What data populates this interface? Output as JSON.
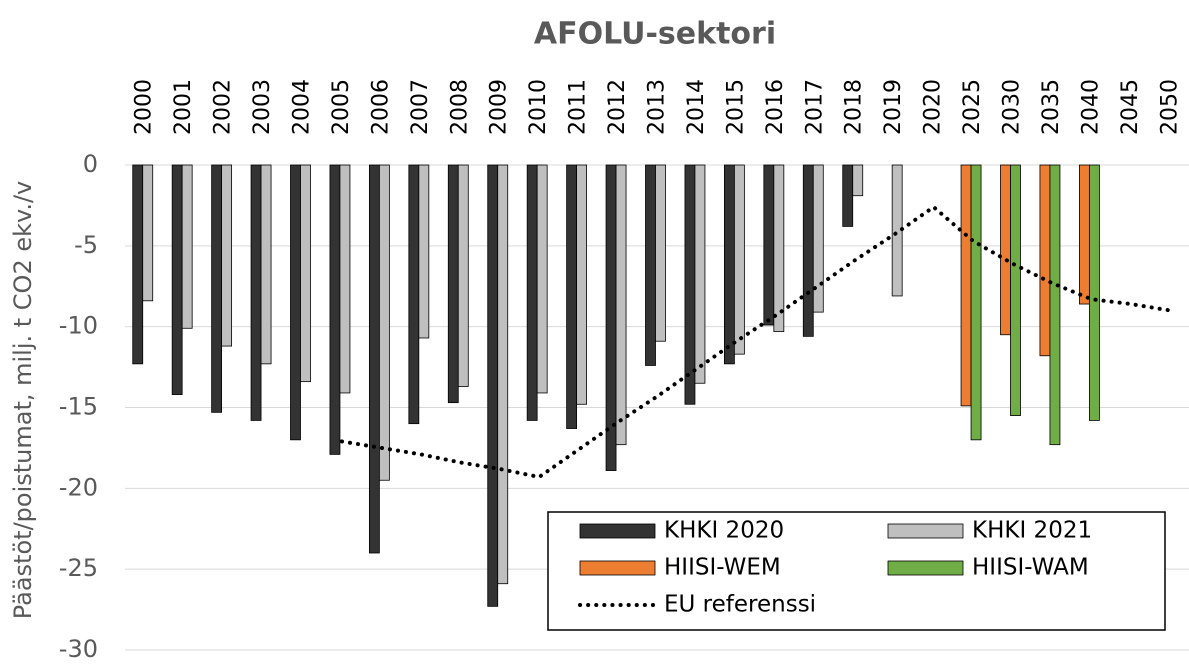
{
  "chart_data": {
    "type": "bar",
    "title": "AFOLU-sektori",
    "y_label": "Päästöt/poistumat, milj. t CO2 ekv./v",
    "categories": [
      "2000",
      "2001",
      "2002",
      "2003",
      "2004",
      "2005",
      "2006",
      "2007",
      "2008",
      "2009",
      "2010",
      "2011",
      "2012",
      "2013",
      "2014",
      "2015",
      "2016",
      "2017",
      "2018",
      "2019",
      "2020",
      "2025",
      "2030",
      "2035",
      "2040",
      "2045",
      "2050"
    ],
    "series": [
      {
        "name": "KHKI 2020",
        "color": "#333333",
        "values": [
          -12.3,
          -14.2,
          -15.3,
          -15.8,
          -17,
          -17.9,
          -24,
          -16,
          -14.7,
          -27.3,
          -15.8,
          -16.3,
          -18.9,
          -12.4,
          -14.8,
          -12.3,
          -9.9,
          -10.6,
          -3.8,
          null,
          null,
          null,
          null,
          null,
          null,
          null,
          null
        ]
      },
      {
        "name": "KHKI 2021",
        "color": "#bfbfbf",
        "values": [
          -8.4,
          -10.1,
          -11.2,
          -12.3,
          -13.4,
          -14.1,
          -19.5,
          -10.7,
          -13.7,
          -25.9,
          -14.1,
          -14.8,
          -17.3,
          -10.9,
          -13.5,
          -11.7,
          -10.3,
          -9.1,
          -1.9,
          -8.1,
          null,
          null,
          null,
          null,
          null,
          null,
          null
        ]
      },
      {
        "name": "HIISI-WEM",
        "color": "#ed7d31",
        "values": [
          null,
          null,
          null,
          null,
          null,
          null,
          null,
          null,
          null,
          null,
          null,
          null,
          null,
          null,
          null,
          null,
          null,
          null,
          null,
          null,
          null,
          -14.9,
          -10.5,
          -11.8,
          -8.6,
          null,
          null
        ]
      },
      {
        "name": "HIISI-WAM",
        "color": "#70ad47",
        "values": [
          null,
          null,
          null,
          null,
          null,
          null,
          null,
          null,
          null,
          null,
          null,
          null,
          null,
          null,
          null,
          null,
          null,
          null,
          null,
          null,
          null,
          -17,
          -15.5,
          -17.3,
          -15.8,
          null,
          null
        ]
      },
      {
        "name": "EU referenssi",
        "color": "#000000",
        "type": "line",
        "style": "dotted",
        "values": [
          null,
          null,
          null,
          null,
          null,
          -17.1,
          -17.5,
          -17.9,
          -18.4,
          -18.8,
          -19.3,
          -17.6,
          -15.9,
          -14.3,
          -12.6,
          -10.9,
          -9.3,
          -7.6,
          -5.9,
          -4.3,
          -2.6,
          -4.7,
          -6.1,
          -7.3,
          -8.3,
          -8.6,
          -9
        ]
      }
    ],
    "ylim": [
      -30,
      0
    ],
    "yticks": [
      0,
      -5,
      -10,
      -15,
      -20,
      -25,
      -30
    ],
    "grid": true
  }
}
